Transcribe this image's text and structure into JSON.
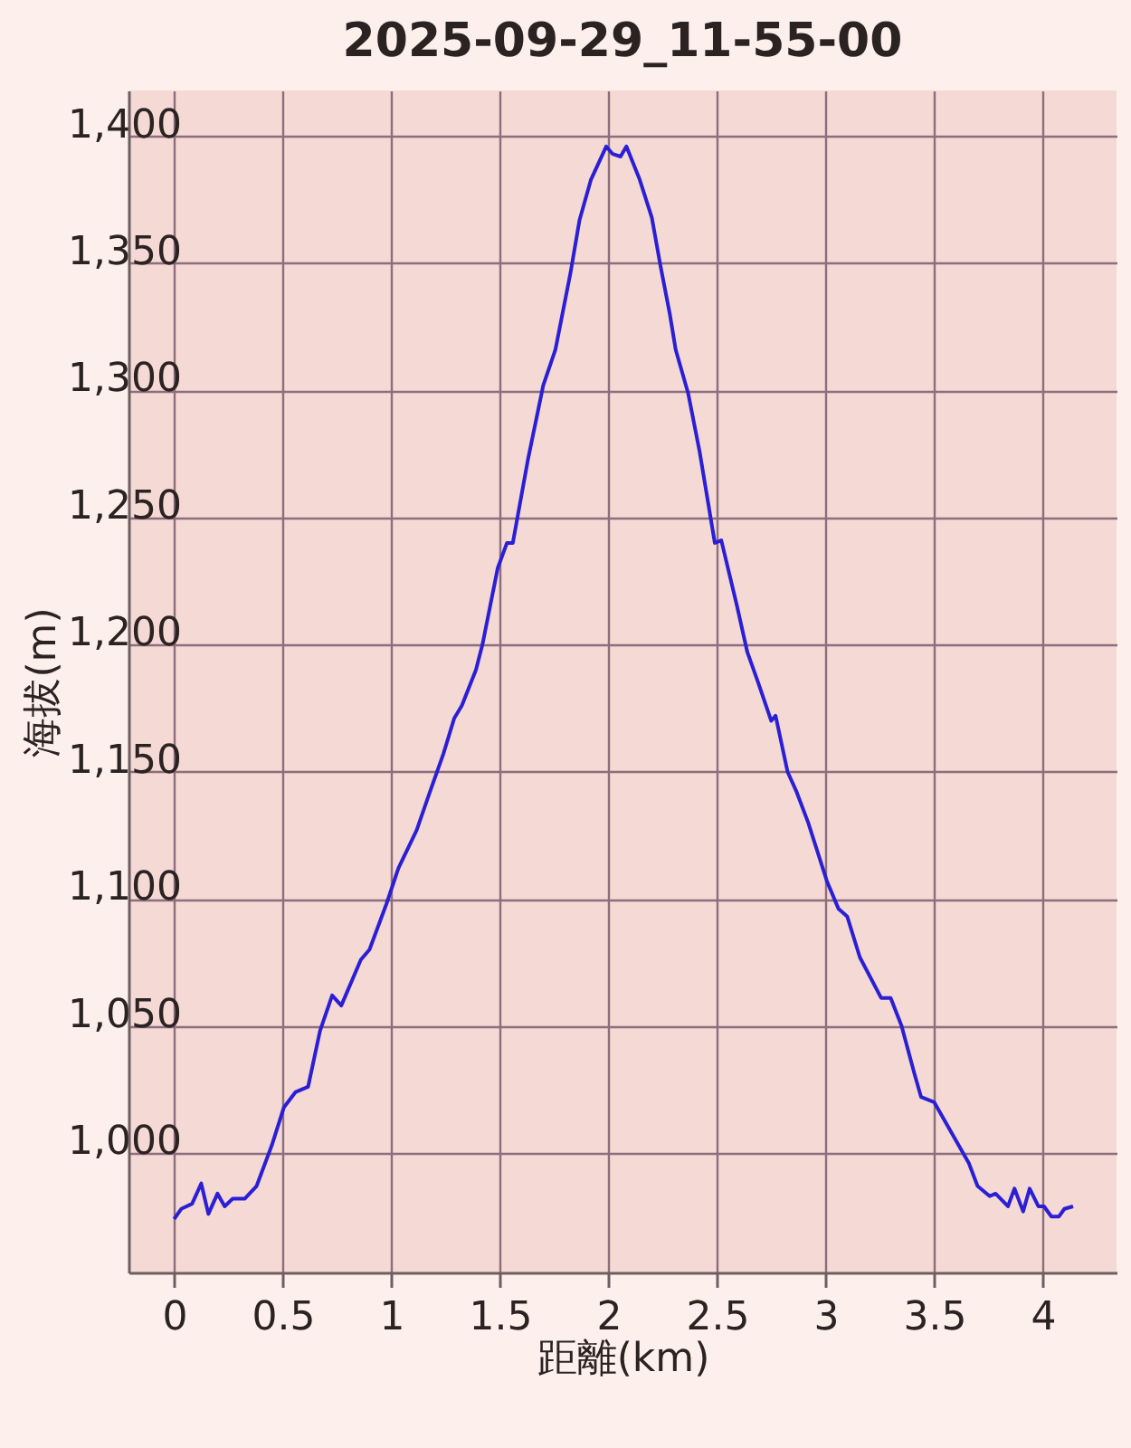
{
  "chart_data": {
    "type": "line",
    "title": "2025-09-29_11-55-00",
    "xlabel": "距離(km)",
    "ylabel": "海拔(m)",
    "x": [
      0,
      0.033,
      0.083,
      0.125,
      0.158,
      0.2,
      0.233,
      0.27,
      0.325,
      0.38,
      0.45,
      0.506,
      0.56,
      0.617,
      0.672,
      0.728,
      0.77,
      0.86,
      0.9,
      0.978,
      1.033,
      1.117,
      1.178,
      1.24,
      1.29,
      1.325,
      1.39,
      1.42,
      1.49,
      1.533,
      1.56,
      1.63,
      1.7,
      1.756,
      1.825,
      1.867,
      1.92,
      1.99,
      2.02,
      2.056,
      2.083,
      2.144,
      2.2,
      2.24,
      2.283,
      2.31,
      2.367,
      2.42,
      2.49,
      2.52,
      2.59,
      2.64,
      2.69,
      2.75,
      2.77,
      2.825,
      2.867,
      2.92,
      3.006,
      3.06,
      3.1,
      3.158,
      3.256,
      3.3,
      3.35,
      3.41,
      3.44,
      3.5,
      3.6,
      3.66,
      3.7,
      3.756,
      3.783,
      3.84,
      3.87,
      3.91,
      3.94,
      3.98,
      4.006,
      4.04,
      4.075,
      4.1,
      4.14
    ],
    "series": [
      {
        "color": "#2b1fd6",
        "values": [
          974,
          978,
          980,
          988,
          976,
          984,
          979,
          982,
          982,
          987,
          1003,
          1018,
          1024,
          1026,
          1048,
          1062,
          1058,
          1076,
          1080,
          1098,
          1112,
          1127,
          1142,
          1157,
          1171,
          1176,
          1190,
          1200,
          1230,
          1240,
          1240,
          1273,
          1302,
          1316,
          1346,
          1367,
          1383,
          1396,
          1393,
          1392,
          1396,
          1383,
          1368,
          1349,
          1330,
          1316,
          1299,
          1276,
          1240,
          1241,
          1216,
          1197,
          1185,
          1170,
          1172,
          1150,
          1142,
          1130,
          1107,
          1096,
          1093,
          1077,
          1061,
          1061,
          1050,
          1031,
          1022,
          1020,
          1005,
          996,
          987,
          983,
          984,
          979,
          986,
          977,
          986,
          979,
          979,
          975,
          975,
          978,
          979
        ]
      }
    ],
    "xlim": [
      -0.21,
      4.34
    ],
    "ylim": [
      953,
      1418
    ],
    "xticks": [
      0,
      0.5,
      1,
      1.5,
      2,
      2.5,
      3,
      3.5,
      4
    ],
    "yticks": [
      {
        "value": 1000,
        "label": "1,000"
      },
      {
        "value": 1050,
        "label": "1,050"
      },
      {
        "value": 1100,
        "label": "1,100"
      },
      {
        "value": 1150,
        "label": "1,150"
      },
      {
        "value": 1200,
        "label": "1,200"
      },
      {
        "value": 1250,
        "label": "1,250"
      },
      {
        "value": 1300,
        "label": "1,300"
      },
      {
        "value": 1350,
        "label": "1,350"
      },
      {
        "value": 1400,
        "label": "1,400"
      }
    ],
    "grid": true
  }
}
